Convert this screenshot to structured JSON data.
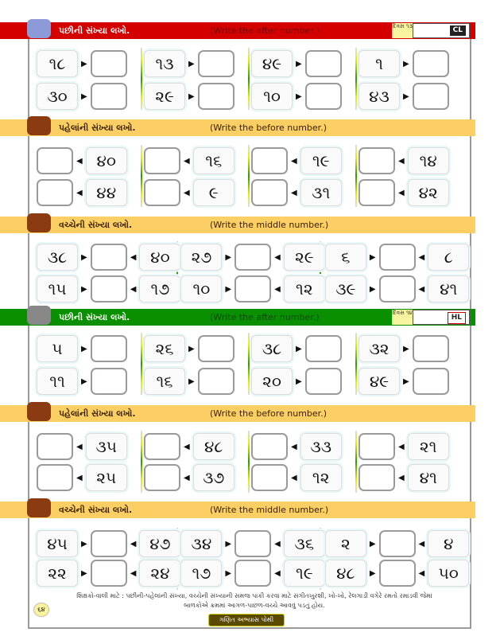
{
  "sections": [
    {
      "type": "after",
      "style": "red",
      "title_gu": "પછીની સંખ્યા લખો.",
      "title_en": "(Write the after number.)",
      "day": "દિવસ ૧૩",
      "tag": "CL",
      "rows": [
        [
          "૧૮",
          "૧૩",
          "૪૯",
          "૧"
        ],
        [
          "૩૦",
          "૨૯",
          "૧૦",
          "૪૩"
        ]
      ]
    },
    {
      "type": "before",
      "style": "yellow",
      "title_gu": "પહેલાંની સંખ્યા લખો.",
      "title_en": "(Write the before number.)",
      "rows": [
        [
          "૪૦",
          "૧૬",
          "૧૯",
          "૧૪"
        ],
        [
          "૪૪",
          "૯",
          "૩૧",
          "૪૨"
        ]
      ]
    },
    {
      "type": "middle",
      "style": "yellow",
      "title_gu": "વચ્ચેની સંખ્યા લખો.",
      "title_en": "(Write the middle number.)",
      "rows": [
        [
          [
            "૩૮",
            "૪૦"
          ],
          [
            "૨૭",
            "૨૯"
          ],
          [
            "૬",
            "૮"
          ]
        ],
        [
          [
            "૧૫",
            "૧૭"
          ],
          [
            "૧૦",
            "૧૨"
          ],
          [
            "૩૯",
            "૪૧"
          ]
        ]
      ]
    },
    {
      "type": "after",
      "style": "green",
      "title_gu": "પછીની સંખ્યા લખો.",
      "title_en": "(Write the after number.)",
      "day": "દિવસ ૧૪",
      "tag": "HL",
      "rows": [
        [
          "૫",
          "૨૬",
          "૩૮",
          "૩૨"
        ],
        [
          "૧૧",
          "૧૬",
          "૨૦",
          "૪૯"
        ]
      ]
    },
    {
      "type": "before",
      "style": "yellow",
      "title_gu": "પહેલાંની સંખ્યા લખો.",
      "title_en": "(Write the before number.)",
      "rows": [
        [
          "૩૫",
          "૪૮",
          "૩૩",
          "૨૧"
        ],
        [
          "૨૫",
          "૩૭",
          "૧૨",
          "૪૧"
        ]
      ]
    },
    {
      "type": "middle",
      "style": "yellow",
      "title_gu": "વચ્ચેની સંખ્યા લખો.",
      "title_en": "(Write the middle number.)",
      "rows": [
        [
          [
            "૪૫",
            "૪૭"
          ],
          [
            "૩૪",
            "૩૬"
          ],
          [
            "૨",
            "૪"
          ]
        ],
        [
          [
            "૨૨",
            "૨૪"
          ],
          [
            "૧૭",
            "૧૯"
          ],
          [
            "૪૮",
            "૫૦"
          ]
        ]
      ]
    }
  ],
  "footer": {
    "note_line1": "શિક્ષકો-વાલી માટે : પછીની-પહેલાંની સંખ્યા, વચ્ચેની સંખ્યાની સમજ પાકી કરવા માટે સંગીતખુરશી, ખો-ખો, રેલગાડી વગેરે રમતો રમાડવી જેમાં",
    "note_line2": "બાળકોએ ક્રમમાં આગળ-પાછળ-વચ્ચે આવવું પડતું હોય.",
    "page_number": "૬૪",
    "banner": "ગણિત અભ્યાસ પોથી"
  },
  "colors": {
    "red": "#d40000",
    "green": "#0a8f00",
    "yellow": "#fbcf63"
  }
}
